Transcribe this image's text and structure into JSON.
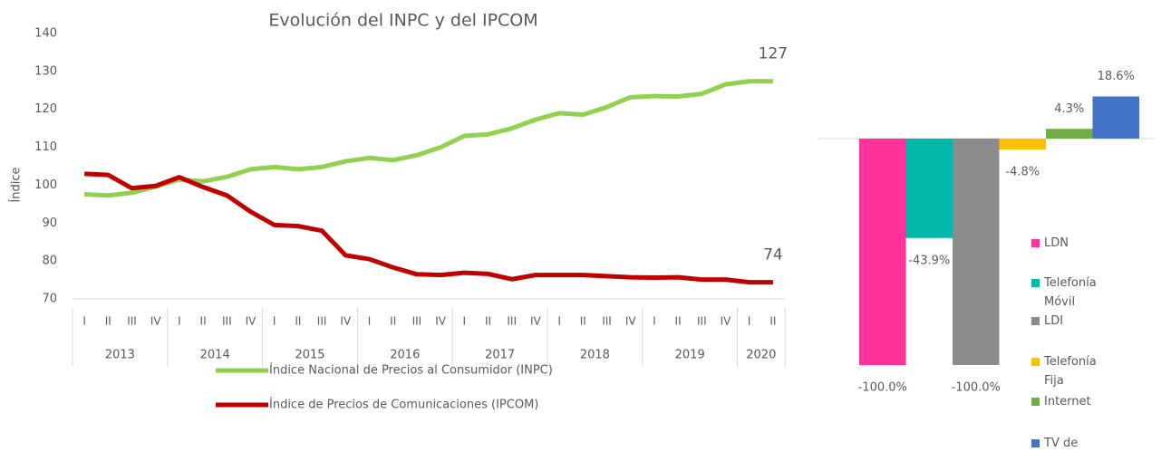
{
  "chart_data": [
    {
      "type": "line",
      "title": "Evolución del INPC y del IPCOM",
      "y_label": "Índice",
      "groups": [
        {
          "label": "2013",
          "quarters": [
            "I",
            "II",
            "III",
            "IV"
          ]
        },
        {
          "label": "2014",
          "quarters": [
            "I",
            "II",
            "III",
            "IV"
          ]
        },
        {
          "label": "2015",
          "quarters": [
            "I",
            "II",
            "III",
            "IV"
          ]
        },
        {
          "label": "2016",
          "quarters": [
            "I",
            "II",
            "III",
            "IV"
          ]
        },
        {
          "label": "2017",
          "quarters": [
            "I",
            "II",
            "III",
            "IV"
          ]
        },
        {
          "label": "2018",
          "quarters": [
            "I",
            "II",
            "III",
            "IV"
          ]
        },
        {
          "label": "2019",
          "quarters": [
            "I",
            "II",
            "III",
            "IV"
          ]
        },
        {
          "label": "2020",
          "quarters": [
            "I",
            "II"
          ]
        }
      ],
      "series": [
        {
          "name": "Índice Nacional de Precios al Consumidor (INPC)",
          "color": "#92d050",
          "end_label": "127",
          "values": [
            97.6,
            97.3,
            98,
            99.6,
            101.5,
            101,
            102.2,
            104.2,
            104.8,
            104.2,
            104.8,
            106.3,
            107.2,
            106.6,
            107.9,
            110,
            113,
            113.4,
            115,
            117.3,
            119,
            118.6,
            120.6,
            123.2,
            123.5,
            123.4,
            124.1,
            126.6,
            127.4,
            127.4
          ]
        },
        {
          "name": "Índice de Precios de Comunicaciones (IPCOM)",
          "color": "#c00000",
          "end_label": "74",
          "values": [
            103,
            102.7,
            99.2,
            99.8,
            102.1,
            99.5,
            97.3,
            93,
            89.5,
            89.2,
            88,
            81.5,
            80.5,
            78.3,
            76.5,
            76.3,
            76.9,
            76.6,
            75.2,
            76.3,
            76.3,
            76.3,
            76,
            75.7,
            75.6,
            75.7,
            75.1,
            75.1,
            74.4,
            74.4
          ]
        }
      ],
      "ylim": [
        70,
        140
      ],
      "yticks": [
        70,
        80,
        90,
        100,
        110,
        120,
        130,
        140
      ]
    },
    {
      "type": "bar",
      "categories": [
        "LDN",
        "Telefonía Móvil",
        "LDI",
        "Telefonía Fija",
        "Internet",
        "TV de Paga"
      ],
      "values": [
        -100,
        -43.9,
        -100,
        -4.8,
        4.3,
        18.6
      ],
      "value_labels": [
        "-100.0%",
        "-43.9%",
        "-100.0%",
        "-4.8%",
        "4.3%",
        "18.6%"
      ],
      "colors": [
        "#ff3399",
        "#00b8aa",
        "#8c8c8c",
        "#ffc000",
        "#70ad47",
        "#4472c4"
      ],
      "ylim": [
        -100,
        20
      ]
    }
  ]
}
